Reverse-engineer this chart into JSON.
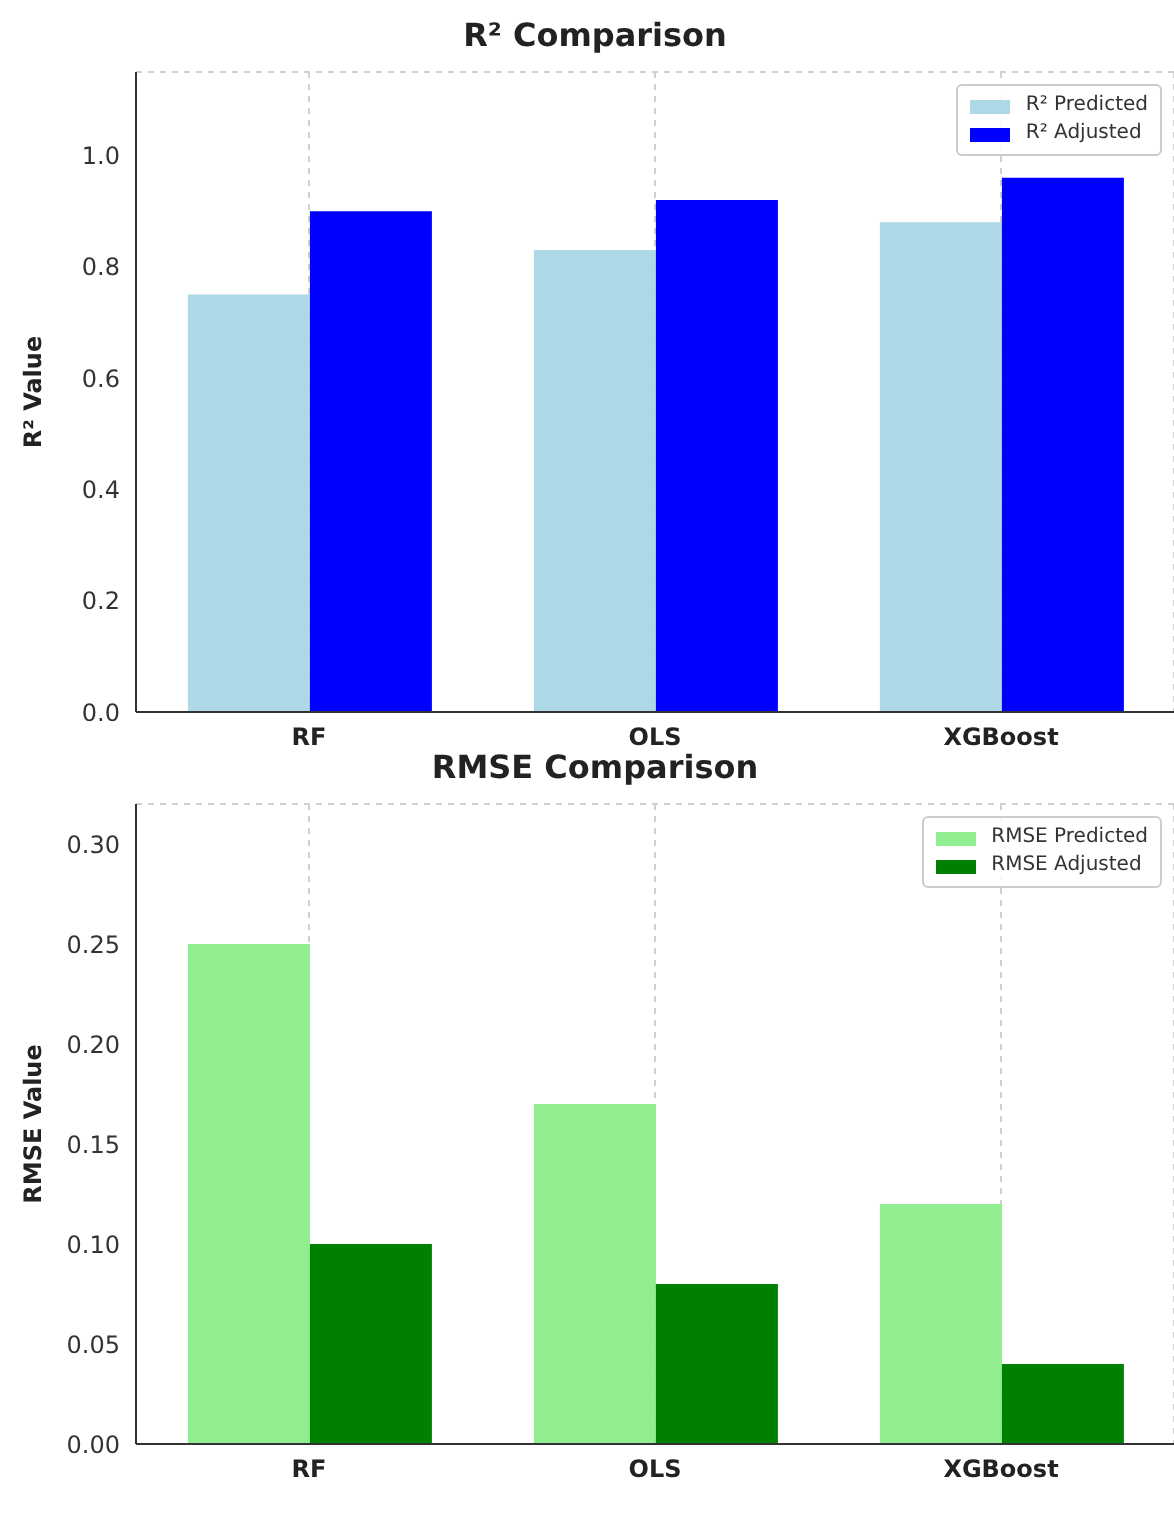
{
  "chart_data": [
    {
      "type": "bar",
      "title": "R² Comparison",
      "ylabel": "R² Value",
      "categories": [
        "RF",
        "OLS",
        "XGBoost"
      ],
      "series": [
        {
          "name": "R² Predicted",
          "color": "#add8e6",
          "values": [
            0.75,
            0.83,
            0.88
          ]
        },
        {
          "name": "R² Adjusted",
          "color": "#0000ff",
          "values": [
            0.9,
            0.92,
            0.96
          ]
        }
      ],
      "ylim": [
        0,
        1.15
      ],
      "yticks": [
        {
          "value": 0,
          "label": "0.0"
        },
        {
          "value": 0.2,
          "label": "0.2"
        },
        {
          "value": 0.4,
          "label": "0.4"
        },
        {
          "value": 0.6,
          "label": "0.6"
        },
        {
          "value": 0.8,
          "label": "0.8"
        },
        {
          "value": 1,
          "label": "1.0"
        }
      ],
      "grid": true,
      "legend": "top right"
    },
    {
      "type": "bar",
      "title": "RMSE Comparison",
      "ylabel": "RMSE Value",
      "categories": [
        "RF",
        "OLS",
        "XGBoost"
      ],
      "series": [
        {
          "name": "RMSE Predicted",
          "color": "#90ee90",
          "values": [
            0.25,
            0.17,
            0.12
          ]
        },
        {
          "name": "RMSE Adjusted",
          "color": "#008000",
          "values": [
            0.1,
            0.08,
            0.04
          ]
        }
      ],
      "ylim": [
        0,
        0.32
      ],
      "yticks": [
        {
          "value": 0,
          "label": "0.00"
        },
        {
          "value": 0.05,
          "label": "0.05"
        },
        {
          "value": 0.1,
          "label": "0.10"
        },
        {
          "value": 0.15,
          "label": "0.15"
        },
        {
          "value": 0.2,
          "label": "0.20"
        },
        {
          "value": 0.25,
          "label": "0.25"
        },
        {
          "value": 0.3,
          "label": "0.30"
        }
      ],
      "grid": true,
      "legend": "top right"
    }
  ]
}
